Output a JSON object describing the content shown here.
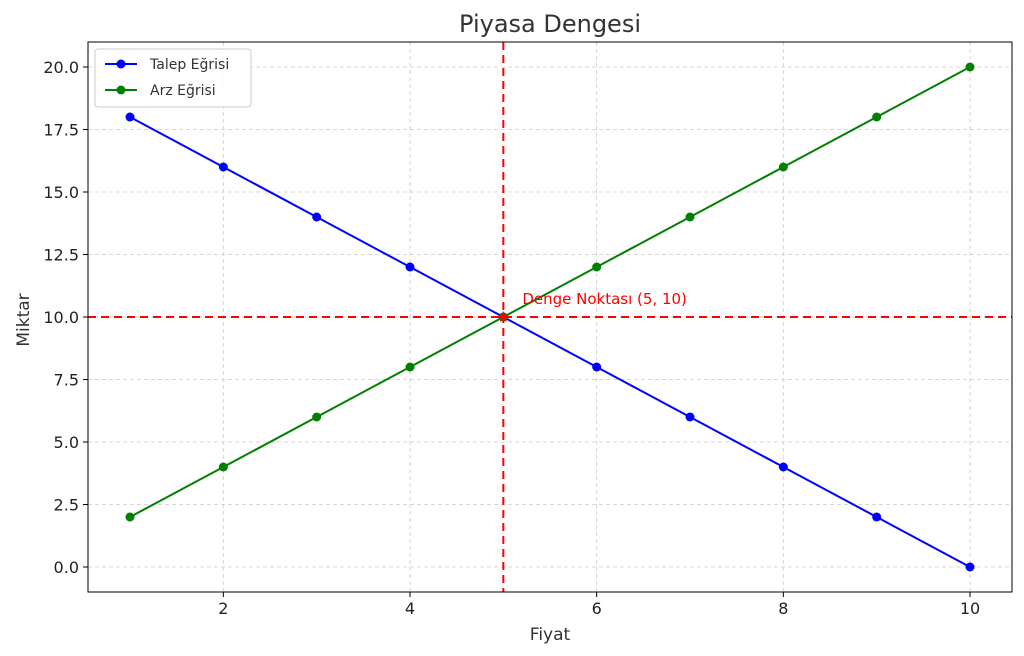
{
  "chart_data": {
    "type": "line",
    "title": "Piyasa Dengesi",
    "xlabel": "Fiyat",
    "ylabel": "Miktar",
    "xlim": [
      0.55,
      10.45
    ],
    "ylim": [
      -1.0,
      21.0
    ],
    "xticks": [
      2,
      4,
      6,
      8,
      10
    ],
    "xtick_labels": [
      "2",
      "4",
      "6",
      "8",
      "10"
    ],
    "yticks": [
      0,
      2.5,
      5,
      7.5,
      10,
      12.5,
      15,
      17.5,
      20
    ],
    "ytick_labels": [
      "0.0",
      "2.5",
      "5.0",
      "7.5",
      "10.0",
      "12.5",
      "15.0",
      "17.5",
      "20.0"
    ],
    "grid": true,
    "legend_position": "top-left",
    "x": [
      1,
      2,
      3,
      4,
      5,
      6,
      7,
      8,
      9,
      10
    ],
    "series": [
      {
        "name": "Talep Eğrisi",
        "color": "#0000ff",
        "values": [
          18,
          16,
          14,
          12,
          10,
          8,
          6,
          4,
          2,
          0
        ]
      },
      {
        "name": "Arz Eğrisi",
        "color": "#008000",
        "values": [
          2,
          4,
          6,
          8,
          10,
          12,
          14,
          16,
          18,
          20
        ]
      }
    ],
    "equilibrium": {
      "x": 5,
      "y": 10,
      "label": "Denge Noktası (5, 10)",
      "color": "#ff0000"
    }
  }
}
